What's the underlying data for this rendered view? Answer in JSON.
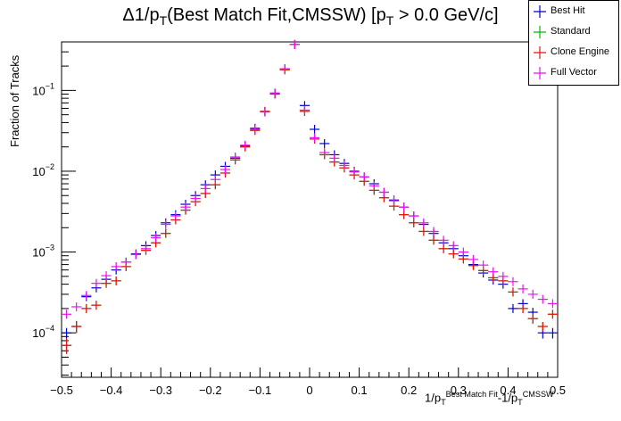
{
  "chart_data": {
    "type": "scatter",
    "title": "Δ1/p_T(Best Match Fit,CMSSW) [p_T > 0.0 GeV/c]",
    "title_parts": {
      "a": "Δ1/p",
      "a_sub": "T",
      "b": "(Best Match Fit,CMSSW) [p",
      "b_sub": "T",
      "c": " > 0.0 GeV/c]"
    },
    "ylabel": "Fraction of Tracks",
    "xlabel_parts": {
      "p1": "1/p",
      "sub1": "T",
      "sup1": "Best Match Fit",
      "p2": "-1/p",
      "sub2": "T",
      "sup2": "CMSSW"
    },
    "xlim": [
      -0.5,
      0.5
    ],
    "ylim_log10": [
      -4.55,
      -0.4
    ],
    "yscale": "log",
    "x_ticks": [
      "−0.5",
      "−0.4",
      "−0.3",
      "−0.2",
      "−0.1",
      "0",
      "0.1",
      "0.2",
      "0.3",
      "0.4",
      "0.5"
    ],
    "y_ticks": [
      {
        "base": "10",
        "exp": "−4",
        "log": -4
      },
      {
        "base": "10",
        "exp": "−3",
        "log": -3
      },
      {
        "base": "10",
        "exp": "−2",
        "log": -2
      },
      {
        "base": "10",
        "exp": "−1",
        "log": -1
      }
    ],
    "legend_placement": "top-right",
    "bin_half_width": 0.01,
    "series": [
      {
        "name": "Best Hit",
        "color": "#0000cc",
        "x": [
          -0.49,
          -0.47,
          -0.45,
          -0.43,
          -0.41,
          -0.39,
          -0.37,
          -0.35,
          -0.33,
          -0.31,
          -0.29,
          -0.27,
          -0.25,
          -0.23,
          -0.21,
          -0.19,
          -0.17,
          -0.15,
          -0.13,
          -0.11,
          -0.09,
          -0.07,
          -0.05,
          -0.03,
          -0.01,
          0.01,
          0.03,
          0.05,
          0.07,
          0.09,
          0.11,
          0.13,
          0.15,
          0.17,
          0.19,
          0.21,
          0.23,
          0.25,
          0.27,
          0.29,
          0.31,
          0.33,
          0.35,
          0.37,
          0.39,
          0.41,
          0.43,
          0.45,
          0.47,
          0.49
        ],
        "y": [
          0.0001,
          0.00012,
          0.00028,
          0.00036,
          0.00046,
          0.0006,
          0.00075,
          0.00095,
          0.0012,
          0.0016,
          0.0023,
          0.0029,
          0.0039,
          0.005,
          0.0068,
          0.009,
          0.0115,
          0.0145,
          0.0205,
          0.034,
          0.055,
          0.092,
          0.185,
          0.37,
          0.065,
          0.033,
          0.022,
          0.016,
          0.0125,
          0.01,
          0.0085,
          0.007,
          0.0055,
          0.0044,
          0.0036,
          0.0028,
          0.0022,
          0.0017,
          0.0013,
          0.0011,
          0.0009,
          0.0007,
          0.00055,
          0.00045,
          0.0004,
          0.0002,
          0.00023,
          0.00018,
          0.0001,
          0.0001
        ],
        "yerr": [
          1.5e-05,
          2e-05,
          2.5e-05,
          2.5e-05,
          2.5e-05,
          3e-05,
          3.5e-05,
          4e-05,
          5e-05,
          6e-05,
          7e-05,
          8e-05,
          0.0001,
          0.00012,
          0.00015,
          0.0002,
          0.0002,
          0.0003,
          0.0003,
          0.0004,
          0.0005,
          0.0007,
          0.001,
          0.002,
          0.0006,
          0.0004,
          0.0003,
          0.0003,
          0.0002,
          0.0002,
          0.0002,
          0.00015,
          0.00015,
          0.0001,
          0.0001,
          8e-05,
          7e-05,
          6e-05,
          5e-05,
          4e-05,
          4e-05,
          3e-05,
          3e-05,
          3e-05,
          2e-05,
          2e-05,
          2e-05,
          2e-05,
          1.5e-05,
          1.5e-05
        ]
      },
      {
        "name": "Standard",
        "color": "#00bb00",
        "x": [
          -0.49,
          -0.47,
          -0.45,
          -0.43,
          -0.41,
          -0.39,
          -0.37,
          -0.35,
          -0.33,
          -0.31,
          -0.29,
          -0.27,
          -0.25,
          -0.23,
          -0.21,
          -0.19,
          -0.17,
          -0.15,
          -0.13,
          -0.11,
          -0.09,
          -0.07,
          -0.05,
          -0.03,
          -0.01,
          0.01,
          0.03,
          0.05,
          0.07,
          0.09,
          0.11,
          0.13,
          0.15,
          0.17,
          0.19,
          0.21,
          0.23,
          0.25,
          0.27,
          0.29,
          0.31,
          0.33,
          0.35,
          0.37,
          0.39,
          0.41,
          0.43,
          0.45,
          0.47,
          0.49
        ],
        "y": [
          7e-05,
          0.00012,
          0.0002,
          0.00022,
          0.00041,
          0.00044,
          0.00066,
          0.00093,
          0.00105,
          0.0013,
          0.0017,
          0.0025,
          0.0033,
          0.0042,
          0.0053,
          0.0068,
          0.0095,
          0.0138,
          0.02,
          0.032,
          0.055,
          0.09,
          0.18,
          0.37,
          0.055,
          0.025,
          0.016,
          0.013,
          0.011,
          0.009,
          0.0075,
          0.0058,
          0.0047,
          0.0037,
          0.0029,
          0.0023,
          0.0018,
          0.0014,
          0.0011,
          0.00095,
          0.00082,
          0.00068,
          0.00059,
          0.00048,
          0.00044,
          0.00032,
          0.0002,
          0.00015,
          0.00012,
          0.00017
        ],
        "yerr": [
          1.5e-05,
          2e-05,
          2e-05,
          2.5e-05,
          2.5e-05,
          3e-05,
          3.5e-05,
          4e-05,
          5e-05,
          6e-05,
          7e-05,
          8e-05,
          0.0001,
          0.00012,
          0.00015,
          0.0002,
          0.0002,
          0.0003,
          0.0003,
          0.0004,
          0.0005,
          0.0007,
          0.001,
          0.002,
          0.0006,
          0.0004,
          0.0003,
          0.0003,
          0.0002,
          0.0002,
          0.0002,
          0.00015,
          0.00015,
          0.0001,
          0.0001,
          8e-05,
          7e-05,
          6e-05,
          5e-05,
          4e-05,
          4e-05,
          3e-05,
          3e-05,
          3e-05,
          2e-05,
          2e-05,
          2e-05,
          2e-05,
          1.5e-05,
          1.5e-05
        ]
      },
      {
        "name": "Clone Engine",
        "color": "#ee1111",
        "x": [
          -0.49,
          -0.47,
          -0.45,
          -0.43,
          -0.41,
          -0.39,
          -0.37,
          -0.35,
          -0.33,
          -0.31,
          -0.29,
          -0.27,
          -0.25,
          -0.23,
          -0.21,
          -0.19,
          -0.17,
          -0.15,
          -0.13,
          -0.11,
          -0.09,
          -0.07,
          -0.05,
          -0.03,
          -0.01,
          0.01,
          0.03,
          0.05,
          0.07,
          0.09,
          0.11,
          0.13,
          0.15,
          0.17,
          0.19,
          0.21,
          0.23,
          0.25,
          0.27,
          0.29,
          0.31,
          0.33,
          0.35,
          0.37,
          0.39,
          0.41,
          0.43,
          0.45,
          0.47,
          0.49
        ],
        "y": [
          7e-05,
          0.00012,
          0.0002,
          0.00022,
          0.00041,
          0.00044,
          0.00066,
          0.00093,
          0.00105,
          0.0013,
          0.0017,
          0.0025,
          0.0033,
          0.0042,
          0.0053,
          0.0068,
          0.0095,
          0.0138,
          0.02,
          0.032,
          0.055,
          0.09,
          0.18,
          0.37,
          0.055,
          0.025,
          0.016,
          0.013,
          0.011,
          0.009,
          0.0075,
          0.0058,
          0.0047,
          0.0037,
          0.0029,
          0.0023,
          0.0018,
          0.0014,
          0.0011,
          0.00095,
          0.00082,
          0.00068,
          0.00059,
          0.00048,
          0.00044,
          0.00032,
          0.0002,
          0.00015,
          0.00012,
          0.00017
        ],
        "yerr": [
          1.5e-05,
          2e-05,
          2e-05,
          2.5e-05,
          2.5e-05,
          3e-05,
          3.5e-05,
          4e-05,
          5e-05,
          6e-05,
          7e-05,
          8e-05,
          0.0001,
          0.00012,
          0.00015,
          0.0002,
          0.0002,
          0.0003,
          0.0003,
          0.0004,
          0.0005,
          0.0007,
          0.001,
          0.002,
          0.0006,
          0.0004,
          0.0003,
          0.0003,
          0.0002,
          0.0002,
          0.0002,
          0.00015,
          0.00015,
          0.0001,
          0.0001,
          8e-05,
          7e-05,
          6e-05,
          5e-05,
          4e-05,
          4e-05,
          3e-05,
          3e-05,
          3e-05,
          2e-05,
          2e-05,
          2e-05,
          2e-05,
          1.5e-05,
          1.5e-05
        ]
      },
      {
        "name": "Full Vector",
        "color": "#ee11ee",
        "x": [
          -0.49,
          -0.47,
          -0.45,
          -0.43,
          -0.41,
          -0.39,
          -0.37,
          -0.35,
          -0.33,
          -0.31,
          -0.29,
          -0.27,
          -0.25,
          -0.23,
          -0.21,
          -0.19,
          -0.17,
          -0.15,
          -0.13,
          -0.11,
          -0.09,
          -0.07,
          -0.05,
          -0.03,
          -0.01,
          0.01,
          0.03,
          0.05,
          0.07,
          0.09,
          0.11,
          0.13,
          0.15,
          0.17,
          0.19,
          0.21,
          0.23,
          0.25,
          0.27,
          0.29,
          0.31,
          0.33,
          0.35,
          0.37,
          0.39,
          0.41,
          0.43,
          0.45,
          0.47,
          0.49
        ],
        "y": [
          0.00017,
          0.00021,
          0.00029,
          0.00041,
          0.00051,
          0.00066,
          0.00075,
          0.00093,
          0.0011,
          0.0015,
          0.0022,
          0.0028,
          0.0036,
          0.0046,
          0.0061,
          0.0079,
          0.0105,
          0.015,
          0.021,
          0.033,
          0.054,
          0.093,
          0.185,
          0.37,
          0.057,
          0.026,
          0.017,
          0.0145,
          0.0118,
          0.0098,
          0.0085,
          0.0066,
          0.0055,
          0.0043,
          0.0036,
          0.0028,
          0.0023,
          0.0018,
          0.0014,
          0.0012,
          0.001,
          0.00081,
          0.00069,
          0.00057,
          0.0005,
          0.00043,
          0.00035,
          0.0003,
          0.00026,
          0.00023
        ],
        "yerr": [
          1.5e-05,
          2e-05,
          2.5e-05,
          2.5e-05,
          2.5e-05,
          3e-05,
          3.5e-05,
          4e-05,
          5e-05,
          6e-05,
          7e-05,
          8e-05,
          0.0001,
          0.00012,
          0.00015,
          0.0002,
          0.0002,
          0.0003,
          0.0003,
          0.0004,
          0.0005,
          0.0007,
          0.001,
          0.002,
          0.0006,
          0.0004,
          0.0003,
          0.0003,
          0.0002,
          0.0002,
          0.0002,
          0.00015,
          0.00015,
          0.0001,
          0.0001,
          8e-05,
          7e-05,
          6e-05,
          5e-05,
          4e-05,
          4e-05,
          3e-05,
          3e-05,
          3e-05,
          2e-05,
          2e-05,
          2e-05,
          2e-05,
          1.5e-05,
          1.5e-05
        ]
      }
    ]
  }
}
